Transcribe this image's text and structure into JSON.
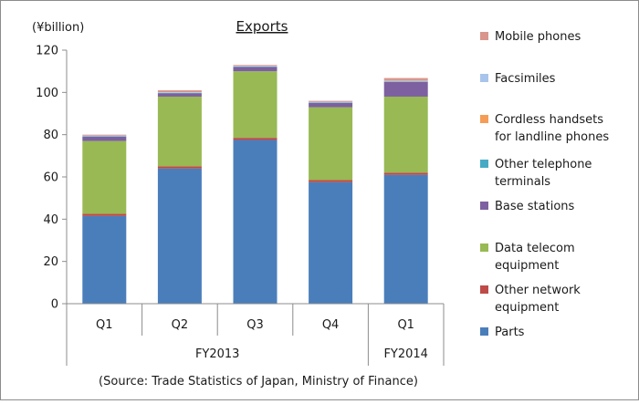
{
  "chart_data": {
    "type": "bar",
    "stacked": true,
    "title": "Exports",
    "unit_label": "(¥billion)",
    "ylim": [
      0,
      120
    ],
    "yticks": [
      0,
      20,
      40,
      60,
      80,
      100,
      120
    ],
    "grid": false,
    "legend_position": "right",
    "categories": [
      "Q1",
      "Q2",
      "Q3",
      "Q4",
      "Q1"
    ],
    "groups": [
      {
        "label": "FY2013",
        "span": [
          0,
          3
        ]
      },
      {
        "label": "FY2014",
        "span": [
          4,
          4
        ]
      }
    ],
    "series": [
      {
        "name": "Parts",
        "color": "#4a7ebb",
        "values": [
          41.5,
          64,
          77.5,
          57.5,
          61
        ]
      },
      {
        "name": "Other network\nequipment",
        "color": "#be4b48",
        "values": [
          1,
          1,
          1,
          1,
          1
        ]
      },
      {
        "name": "Data telecom\nequipment",
        "color": "#98b954",
        "values": [
          34.5,
          33,
          31.5,
          34.5,
          36
        ]
      },
      {
        "name": "Base stations",
        "color": "#7d60a0",
        "values": [
          2,
          1.5,
          2,
          2,
          7
        ]
      },
      {
        "name": "Other telephone\nterminals",
        "color": "#46aac5",
        "values": [
          0.2,
          0.2,
          0.2,
          0.2,
          0.2
        ]
      },
      {
        "name": "Cordless handsets\nfor landline phones",
        "color": "#f59d56",
        "values": [
          0.1,
          0.1,
          0.1,
          0.1,
          0.1
        ]
      },
      {
        "name": "Facsimiles",
        "color": "#a9c4eb",
        "values": [
          0.3,
          0.3,
          0.3,
          0.3,
          0.3
        ]
      },
      {
        "name": "Mobile phones",
        "color": "#d9968c",
        "values": [
          0.4,
          0.9,
          0.4,
          0.4,
          1.2
        ]
      }
    ],
    "source": "(Source: Trade Statistics of Japan, Ministry of Finance)"
  }
}
